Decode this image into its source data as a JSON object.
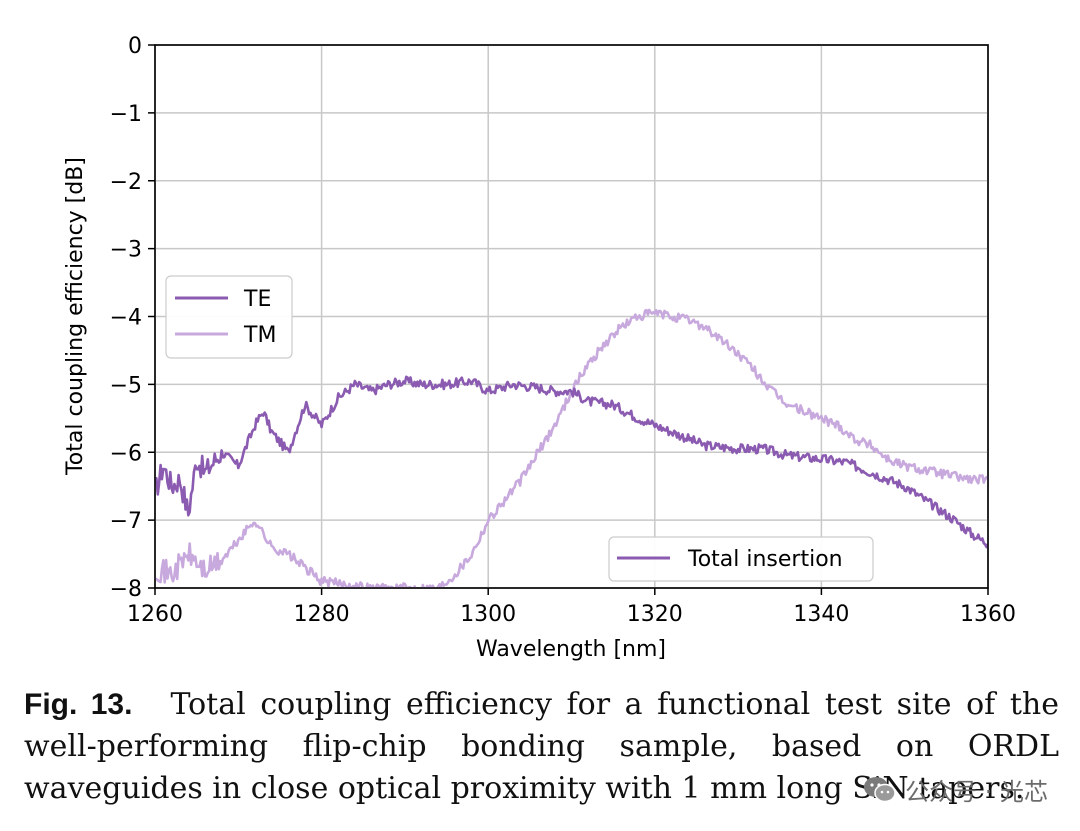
{
  "chart_data": {
    "type": "line",
    "title": "",
    "xlabel": "Wavelength [nm]",
    "ylabel": "Total coupling efficiency [dB]",
    "xlim": [
      1260,
      1360
    ],
    "ylim": [
      -8,
      0
    ],
    "xticks": [
      "1260",
      "1280",
      "1300",
      "1320",
      "1340",
      "1360"
    ],
    "yticks": [
      "0",
      "−1",
      "−2",
      "−3",
      "−4",
      "−5",
      "−6",
      "−7",
      "−8"
    ],
    "grid": true,
    "legend_top_left": [
      "TE",
      "TM"
    ],
    "legend_bottom_right": [
      "Total insertion"
    ],
    "series": [
      {
        "name": "TE",
        "color": "#8b5bb1",
        "x": [
          1260,
          1261,
          1262,
          1263,
          1264,
          1265,
          1266,
          1268,
          1270,
          1272,
          1273,
          1274,
          1276,
          1278,
          1280,
          1282,
          1284,
          1286,
          1288,
          1290,
          1292,
          1295,
          1298,
          1300,
          1303,
          1306,
          1308,
          1310,
          1312,
          1315,
          1318,
          1320,
          1323,
          1326,
          1330,
          1333,
          1336,
          1340,
          1343,
          1346,
          1350,
          1353,
          1356,
          1358,
          1360
        ],
        "y": [
          -6.6,
          -6.2,
          -6.5,
          -6.4,
          -6.9,
          -6.1,
          -6.3,
          -6.0,
          -6.2,
          -5.6,
          -5.4,
          -5.7,
          -6.0,
          -5.3,
          -5.6,
          -5.2,
          -5.0,
          -5.1,
          -5.0,
          -4.95,
          -5.0,
          -5.0,
          -4.95,
          -5.1,
          -5.0,
          -5.05,
          -5.1,
          -5.1,
          -5.25,
          -5.3,
          -5.5,
          -5.6,
          -5.75,
          -5.9,
          -5.95,
          -5.95,
          -6.05,
          -6.1,
          -6.15,
          -6.3,
          -6.5,
          -6.75,
          -7.0,
          -7.2,
          -7.35
        ]
      },
      {
        "name": "TM",
        "color": "#c8a9dd",
        "x": [
          1260,
          1262,
          1264,
          1266,
          1268,
          1270,
          1272,
          1274,
          1276,
          1278,
          1280,
          1283,
          1286,
          1290,
          1294,
          1296,
          1298,
          1300,
          1302,
          1304,
          1306,
          1308,
          1310,
          1312,
          1314,
          1316,
          1318,
          1320,
          1322,
          1324,
          1326,
          1328,
          1330,
          1332,
          1334,
          1336,
          1338,
          1340,
          1342,
          1344,
          1346,
          1348,
          1350,
          1352,
          1354,
          1356,
          1358,
          1360
        ],
        "y": [
          -7.7,
          -7.8,
          -7.5,
          -7.75,
          -7.6,
          -7.3,
          -7.0,
          -7.4,
          -7.5,
          -7.7,
          -7.9,
          -7.95,
          -8.0,
          -8.0,
          -8.0,
          -7.8,
          -7.5,
          -7.0,
          -6.7,
          -6.4,
          -6.0,
          -5.6,
          -5.1,
          -4.7,
          -4.4,
          -4.15,
          -4.0,
          -3.95,
          -4.0,
          -4.05,
          -4.15,
          -4.35,
          -4.55,
          -4.8,
          -5.1,
          -5.3,
          -5.4,
          -5.5,
          -5.6,
          -5.8,
          -5.9,
          -6.1,
          -6.2,
          -6.25,
          -6.3,
          -6.35,
          -6.4,
          -6.4
        ]
      }
    ]
  },
  "caption": {
    "label": "Fig. 13.",
    "text": "Total coupling efficiency for a functional test site of the well-performing flip-chip bonding sample, based on ORDL waveguides in close optical proximity with 1 mm long SiN tapers."
  },
  "watermark": {
    "text": "公众号 · 光芯"
  }
}
